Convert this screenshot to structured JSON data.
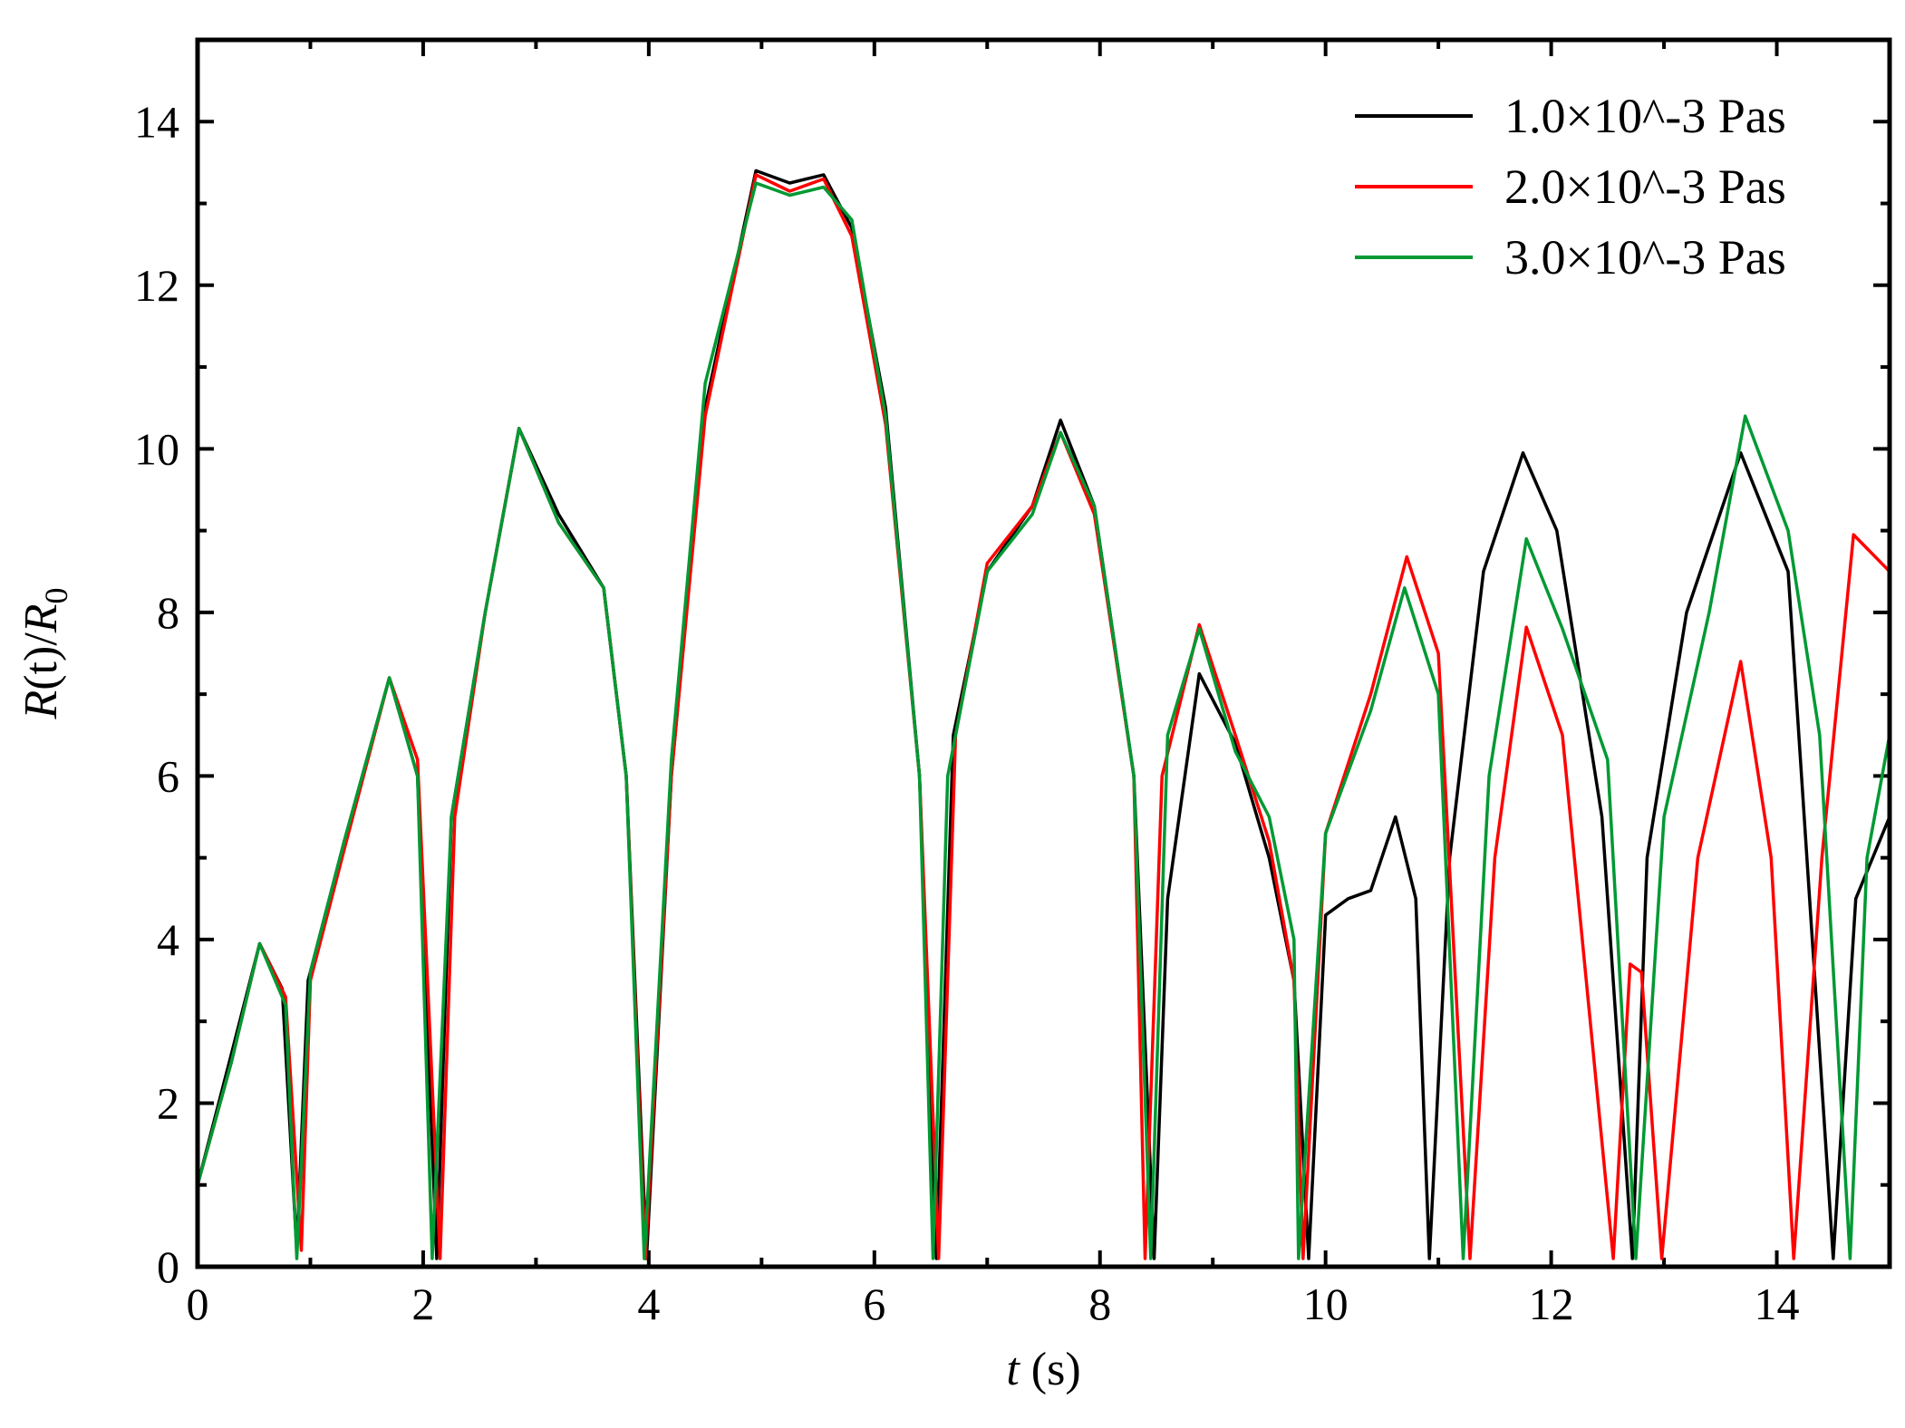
{
  "chart_data": {
    "type": "line",
    "xlabel": {
      "var": "t",
      "unit": " (s)"
    },
    "ylabel": {
      "prefix": "R",
      "mid": "(t)/",
      "var": "R",
      "sub": "0"
    },
    "xlim": [
      0,
      15
    ],
    "ylim": [
      0,
      15
    ],
    "xticks": [
      0,
      2,
      4,
      6,
      8,
      10,
      12,
      14
    ],
    "yticks": [
      0,
      2,
      4,
      6,
      8,
      10,
      12,
      14
    ],
    "grid": false,
    "legend_position": "top-right",
    "series": [
      {
        "name": "1.0×10^-3 Pas",
        "color": "#000000",
        "x": [
          0,
          0.3,
          0.55,
          0.75,
          0.88,
          0.98,
          1.3,
          1.7,
          1.95,
          2.12,
          2.25,
          2.55,
          2.85,
          3.2,
          3.6,
          3.8,
          3.98,
          4.2,
          4.5,
          4.95,
          5.25,
          5.55,
          5.8,
          6.1,
          6.4,
          6.55,
          6.7,
          7.0,
          7.4,
          7.65,
          7.95,
          8.3,
          8.48,
          8.6,
          8.88,
          9.2,
          9.5,
          9.72,
          9.85,
          10.0,
          10.2,
          10.4,
          10.62,
          10.8,
          10.92,
          11.1,
          11.4,
          11.75,
          12.05,
          12.45,
          12.72,
          12.85,
          13.2,
          13.68,
          14.1,
          14.5,
          14.7,
          15.0
        ],
        "y": [
          1.0,
          2.6,
          3.95,
          3.4,
          0.2,
          3.5,
          5.2,
          7.2,
          6.0,
          0.1,
          5.5,
          8.0,
          10.25,
          9.2,
          8.3,
          6.0,
          0.1,
          6.0,
          10.5,
          13.4,
          13.25,
          13.35,
          12.7,
          10.5,
          6.0,
          0.1,
          6.5,
          8.5,
          9.3,
          10.35,
          9.3,
          6.0,
          0.1,
          4.5,
          7.25,
          6.4,
          5.0,
          3.5,
          0.1,
          4.3,
          4.5,
          4.6,
          5.5,
          4.5,
          0.1,
          5.0,
          8.5,
          9.95,
          9.0,
          5.5,
          0.1,
          5.0,
          8.0,
          9.95,
          8.5,
          0.1,
          4.5,
          5.5
        ]
      },
      {
        "name": "2.0×10^-3 Pas",
        "color": "#ff0000",
        "x": [
          0,
          0.3,
          0.55,
          0.78,
          0.92,
          1.0,
          1.3,
          1.7,
          1.95,
          2.15,
          2.28,
          2.55,
          2.85,
          3.2,
          3.6,
          3.8,
          3.97,
          4.2,
          4.5,
          4.95,
          5.25,
          5.55,
          5.8,
          6.1,
          6.4,
          6.57,
          6.72,
          7.0,
          7.4,
          7.65,
          7.95,
          8.3,
          8.4,
          8.55,
          8.88,
          9.2,
          9.5,
          9.72,
          9.8,
          10.0,
          10.4,
          10.72,
          11.0,
          11.28,
          11.5,
          11.78,
          12.1,
          12.55,
          12.7,
          12.8,
          12.98,
          13.3,
          13.68,
          13.95,
          14.15,
          14.4,
          14.68,
          15.0
        ],
        "y": [
          1.0,
          2.5,
          3.95,
          3.3,
          0.2,
          3.5,
          5.1,
          7.2,
          6.2,
          0.1,
          5.5,
          8.0,
          10.25,
          9.1,
          8.3,
          6.0,
          0.1,
          6.0,
          10.4,
          13.35,
          13.15,
          13.3,
          12.6,
          10.3,
          6.0,
          0.1,
          6.5,
          8.6,
          9.3,
          10.2,
          9.2,
          6.0,
          0.1,
          6.0,
          7.85,
          6.5,
          5.2,
          3.5,
          0.1,
          5.3,
          7.0,
          8.68,
          7.5,
          0.1,
          5.0,
          7.82,
          6.5,
          0.1,
          3.7,
          3.6,
          0.1,
          5.0,
          7.4,
          5.0,
          0.1,
          5.0,
          8.95,
          8.5
        ]
      },
      {
        "name": "3.0×10^-3 Pas",
        "color": "#009933",
        "x": [
          0,
          0.3,
          0.55,
          0.78,
          0.88,
          1.0,
          1.3,
          1.7,
          1.95,
          2.08,
          2.25,
          2.55,
          2.85,
          3.2,
          3.6,
          3.8,
          3.96,
          4.2,
          4.5,
          4.95,
          5.25,
          5.55,
          5.8,
          6.1,
          6.4,
          6.52,
          6.65,
          7.0,
          7.4,
          7.65,
          7.95,
          8.3,
          8.45,
          8.6,
          8.88,
          9.2,
          9.5,
          9.72,
          9.76,
          10.0,
          10.4,
          10.7,
          11.0,
          11.22,
          11.45,
          11.78,
          12.1,
          12.5,
          12.75,
          13.0,
          13.4,
          13.72,
          14.1,
          14.38,
          14.65,
          14.8,
          15.0
        ],
        "y": [
          1.0,
          2.5,
          3.95,
          3.2,
          0.1,
          3.6,
          5.2,
          7.2,
          6.0,
          0.1,
          5.5,
          8.0,
          10.25,
          9.1,
          8.3,
          6.0,
          0.1,
          6.2,
          10.8,
          13.25,
          13.1,
          13.2,
          12.8,
          10.4,
          6.0,
          0.1,
          6.0,
          8.5,
          9.2,
          10.2,
          9.3,
          6.0,
          0.1,
          6.5,
          7.8,
          6.3,
          5.5,
          4.0,
          0.1,
          5.3,
          6.8,
          8.3,
          7.0,
          0.1,
          6.0,
          8.9,
          7.8,
          6.2,
          0.1,
          5.5,
          8.0,
          10.4,
          9.0,
          6.5,
          0.1,
          5.0,
          6.5
        ]
      }
    ]
  }
}
